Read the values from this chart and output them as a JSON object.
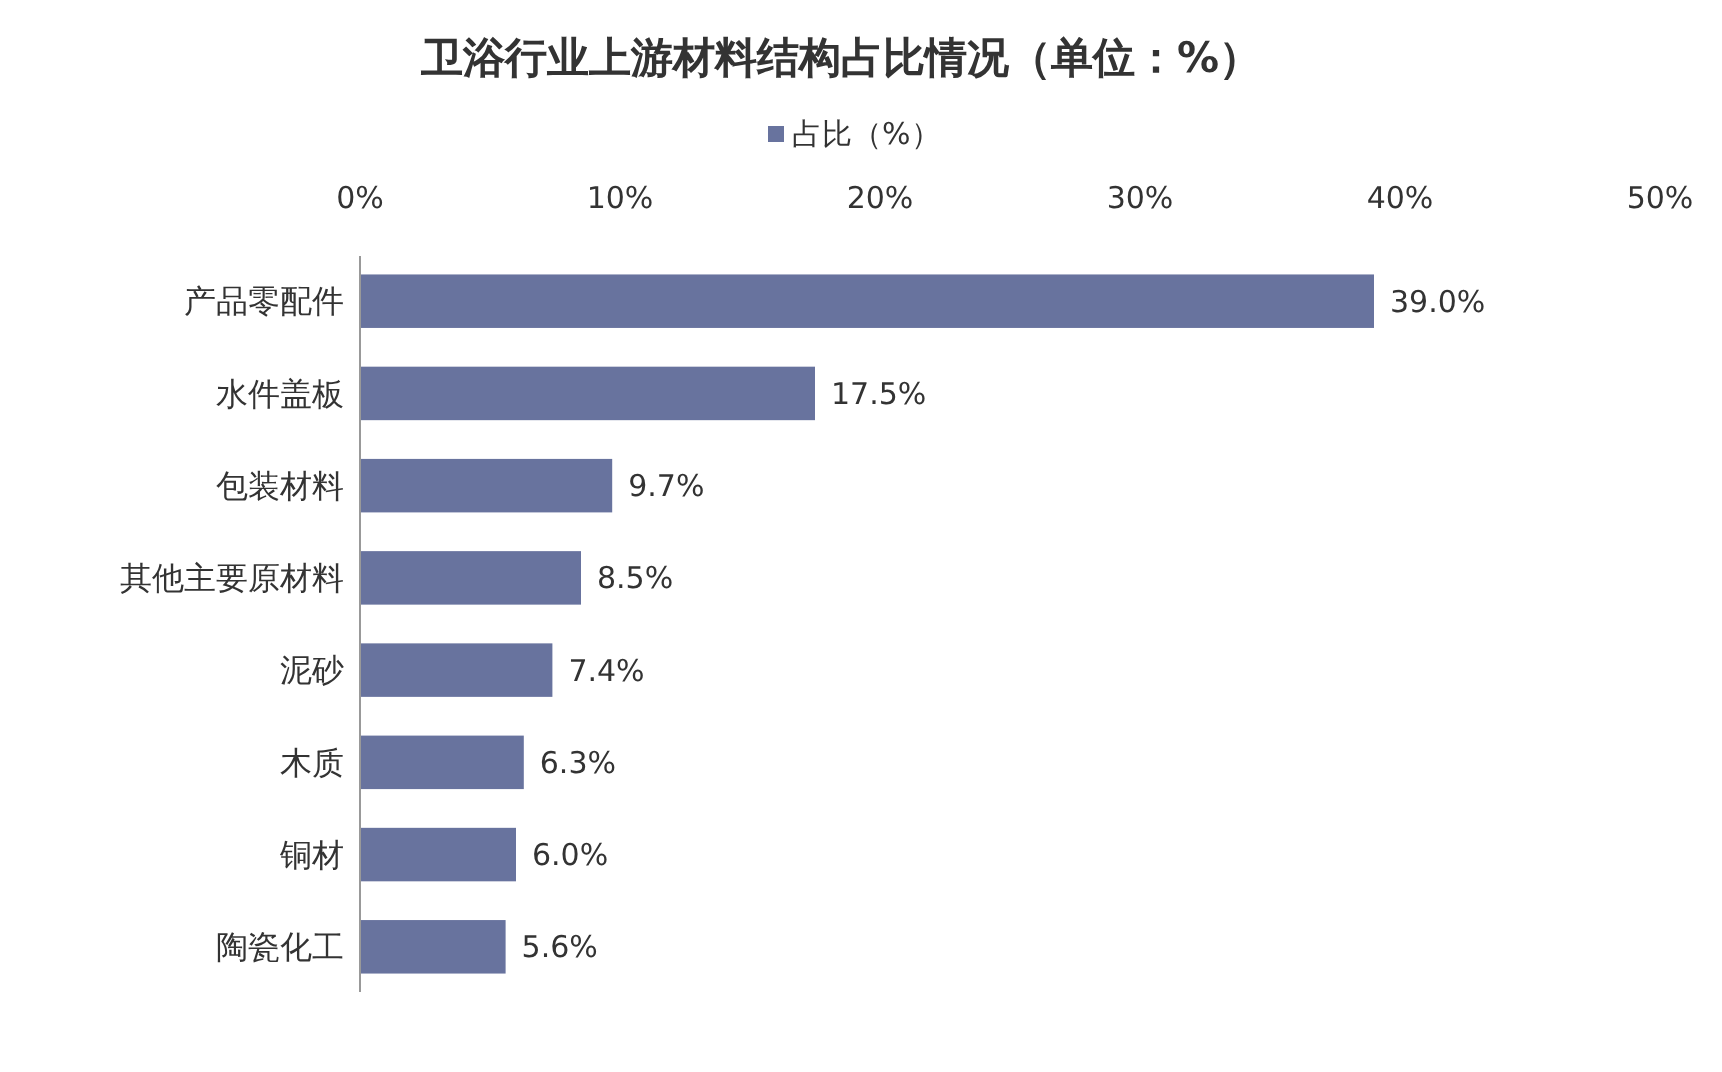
{
  "chart_data": {
    "type": "bar",
    "orientation": "horizontal",
    "title": "卫浴行业上游材料结构占比情况（单位：%）",
    "categories": [
      "产品零配件",
      "水件盖板",
      "包装材料",
      "其他主要原材料",
      "泥砂",
      "木质",
      "铜材",
      "陶瓷化工"
    ],
    "series": [
      {
        "name": "占比（%）",
        "color": "#68739e",
        "values": [
          39.0,
          17.5,
          9.7,
          8.5,
          7.4,
          6.3,
          6.0,
          5.6
        ]
      }
    ],
    "value_labels": [
      "39.0%",
      "17.5%",
      "9.7%",
      "8.5%",
      "7.4%",
      "6.3%",
      "6.0%",
      "5.6%"
    ],
    "xlim": [
      0,
      50
    ],
    "xticks": [
      {
        "value": 0,
        "label": "0%"
      },
      {
        "value": 10,
        "label": "10%"
      },
      {
        "value": 20,
        "label": "20%"
      },
      {
        "value": 30,
        "label": "30%"
      },
      {
        "value": 40,
        "label": "40%"
      },
      {
        "value": 50,
        "label": "50%"
      }
    ],
    "grid": false,
    "legend": "top"
  }
}
